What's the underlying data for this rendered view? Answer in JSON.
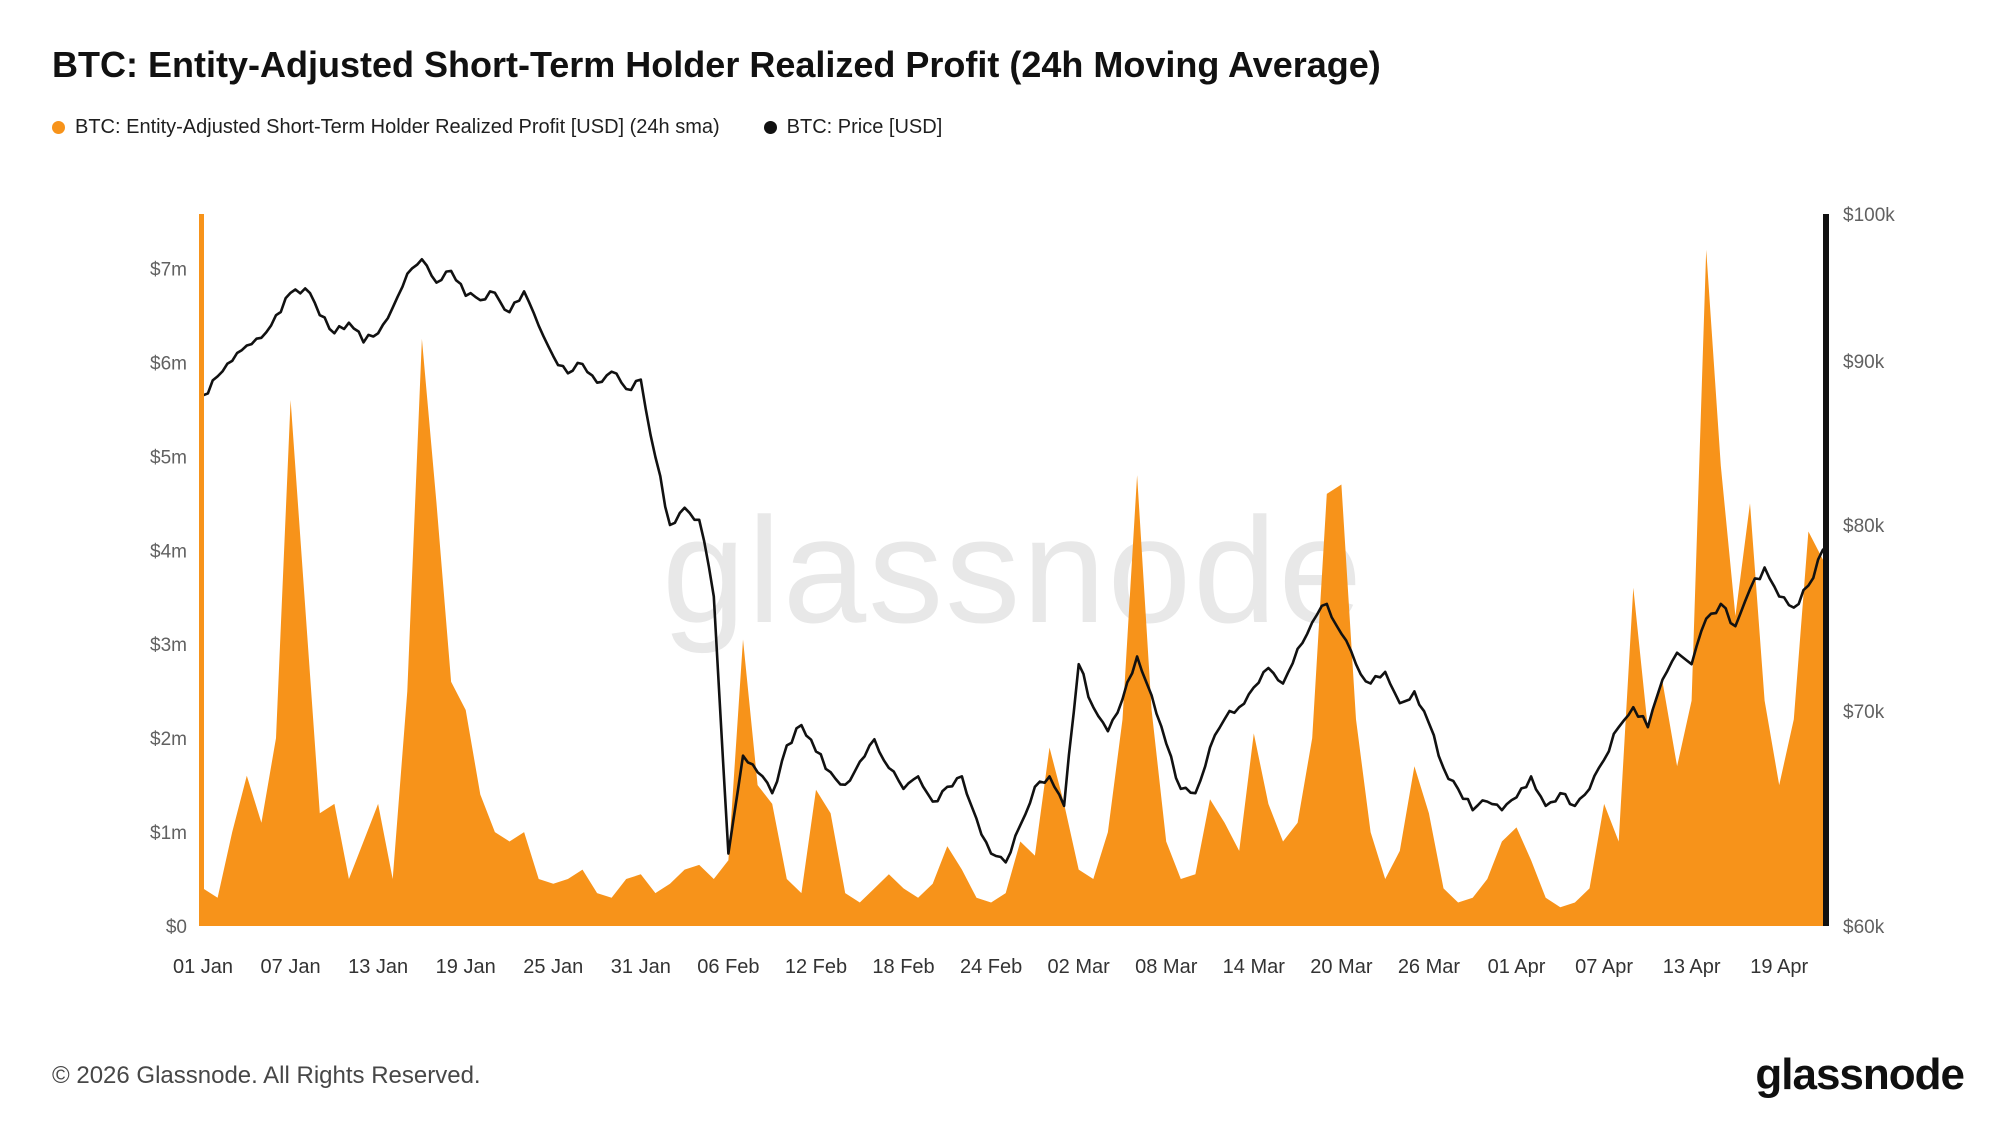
{
  "header": {
    "title": "BTC: Entity-Adjusted Short-Term Holder Realized Profit (24h Moving Average)"
  },
  "legend": {
    "profit": {
      "label": "BTC: Entity-Adjusted Short-Term Holder Realized Profit [USD] (24h sma)",
      "color": "#F7931A"
    },
    "price": {
      "label": "BTC: Price [USD]",
      "color": "#111111"
    }
  },
  "watermark": "glassnode",
  "footer": {
    "copyright": "© 2026 Glassnode. All Rights Reserved.",
    "logo_text": "glassnode"
  },
  "chart_data": {
    "type": "area+line",
    "title": "BTC: Entity-Adjusted Short-Term Holder Realized Profit (24h Moving Average)",
    "x_unit": "date",
    "x_tick_labels": [
      "01 Jan",
      "07 Jan",
      "13 Jan",
      "19 Jan",
      "25 Jan",
      "31 Jan",
      "06 Feb",
      "12 Feb",
      "18 Feb",
      "24 Feb",
      "02 Mar",
      "08 Mar",
      "14 Mar",
      "20 Mar",
      "26 Mar",
      "01 Apr",
      "07 Apr",
      "13 Apr",
      "19 Apr"
    ],
    "x_tick_days": [
      0,
      6,
      12,
      18,
      24,
      30,
      36,
      42,
      48,
      54,
      60,
      66,
      72,
      78,
      84,
      90,
      96,
      102,
      108
    ],
    "left_axis": {
      "unit": "USD (millions)",
      "scale": "linear",
      "ticks": [
        "$0",
        "$1m",
        "$2m",
        "$3m",
        "$4m",
        "$5m",
        "$6m",
        "$7m"
      ],
      "tick_values": [
        0,
        1,
        2,
        3,
        4,
        5,
        6,
        7
      ],
      "min": 0,
      "max": 7.58
    },
    "right_axis": {
      "unit": "USD (thousands)",
      "scale": "log",
      "ticks": [
        "$60k",
        "$70k",
        "$80k",
        "$90k",
        "$100k"
      ],
      "tick_values": [
        60,
        70,
        80,
        90,
        100
      ],
      "min": 60,
      "max": 100
    },
    "grid": false,
    "legend_position": "top-left",
    "series": [
      {
        "name": "BTC: Entity-Adjusted Short-Term Holder Realized Profit [USD] (24h sma)",
        "type": "area",
        "axis": "left",
        "color": "#F7931A",
        "unit": "million USD",
        "values": [
          0.4,
          0.3,
          1.0,
          1.6,
          1.1,
          2.0,
          5.6,
          3.4,
          1.2,
          1.3,
          0.5,
          0.9,
          1.3,
          0.5,
          2.5,
          6.25,
          4.5,
          2.6,
          2.3,
          1.4,
          1.0,
          0.9,
          1.0,
          0.5,
          0.45,
          0.5,
          0.6,
          0.35,
          0.3,
          0.5,
          0.55,
          0.35,
          0.45,
          0.6,
          0.65,
          0.5,
          0.7,
          3.05,
          1.5,
          1.3,
          0.5,
          0.35,
          1.45,
          1.2,
          0.35,
          0.25,
          0.4,
          0.55,
          0.4,
          0.3,
          0.45,
          0.85,
          0.6,
          0.3,
          0.25,
          0.35,
          0.9,
          0.75,
          1.9,
          1.3,
          0.6,
          0.5,
          1.0,
          2.2,
          4.8,
          2.3,
          0.9,
          0.5,
          0.55,
          1.35,
          1.1,
          0.8,
          2.05,
          1.3,
          0.9,
          1.1,
          2.0,
          4.6,
          4.7,
          2.2,
          1.0,
          0.5,
          0.8,
          1.7,
          1.2,
          0.4,
          0.25,
          0.3,
          0.5,
          0.9,
          1.05,
          0.7,
          0.3,
          0.2,
          0.25,
          0.4,
          1.3,
          0.9,
          3.6,
          2.1,
          2.6,
          1.7,
          2.4,
          7.2,
          4.9,
          3.3,
          4.5,
          2.4,
          1.5,
          2.2,
          4.2,
          3.9
        ]
      },
      {
        "name": "BTC: Price [USD]",
        "type": "line",
        "axis": "right",
        "color": "#111111",
        "unit": "thousand USD",
        "values": [
          87.8,
          89.0,
          90.0,
          91.0,
          91.5,
          93.0,
          94.5,
          94.8,
          93.0,
          91.8,
          92.5,
          91.2,
          91.8,
          93.5,
          95.8,
          96.8,
          95.2,
          96.0,
          94.3,
          94.0,
          94.5,
          93.2,
          94.6,
          92.3,
          90.3,
          89.2,
          89.8,
          88.6,
          89.3,
          88.2,
          88.8,
          84.0,
          80.0,
          81.0,
          80.3,
          76.0,
          63.2,
          67.8,
          67.0,
          66.0,
          68.3,
          69.3,
          68.0,
          67.0,
          66.4,
          67.5,
          68.6,
          67.2,
          66.2,
          66.8,
          65.6,
          66.3,
          66.8,
          64.8,
          63.2,
          62.8,
          64.5,
          66.3,
          66.8,
          65.4,
          72.4,
          70.2,
          69.0,
          70.6,
          72.8,
          70.8,
          68.4,
          66.2,
          66.0,
          68.2,
          69.6,
          70.2,
          71.2,
          72.2,
          71.4,
          73.2,
          74.6,
          75.6,
          74.0,
          72.4,
          71.4,
          72.0,
          70.4,
          71.0,
          69.4,
          67.2,
          66.2,
          65.2,
          65.6,
          65.2,
          65.8,
          66.8,
          65.4,
          66.0,
          65.4,
          66.2,
          67.6,
          69.2,
          70.2,
          69.2,
          71.6,
          73.0,
          72.4,
          74.8,
          75.6,
          74.4,
          76.4,
          77.6,
          76.0,
          75.4,
          76.6,
          78.6
        ]
      }
    ]
  }
}
